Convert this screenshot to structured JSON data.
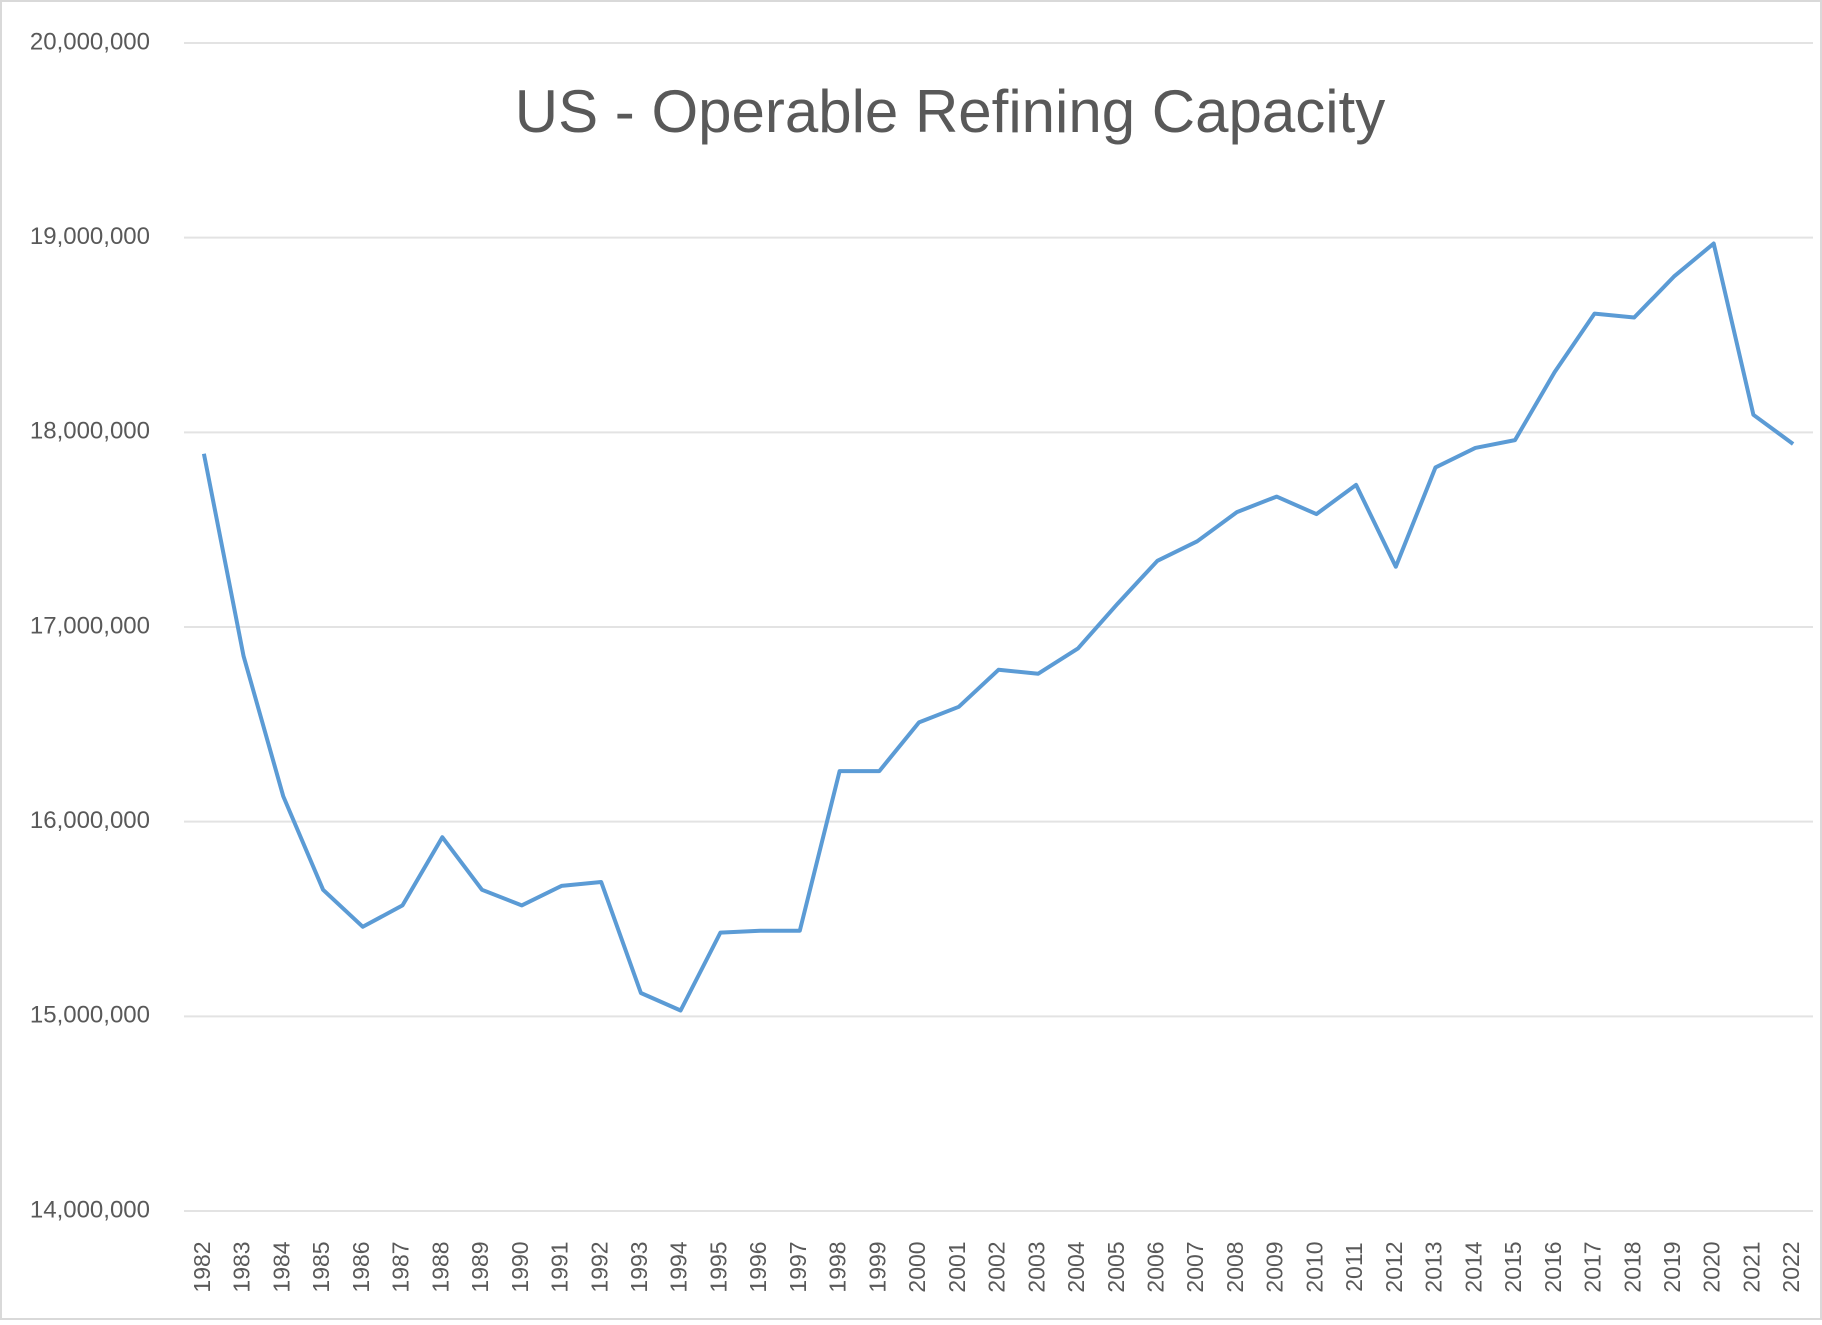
{
  "chart_data": {
    "type": "line",
    "title": "US - Operable Refining Capacity",
    "categories": [
      "1982",
      "1983",
      "1984",
      "1985",
      "1986",
      "1987",
      "1988",
      "1989",
      "1990",
      "1991",
      "1992",
      "1993",
      "1994",
      "1995",
      "1996",
      "1997",
      "1998",
      "1999",
      "2000",
      "2001",
      "2002",
      "2003",
      "2004",
      "2005",
      "2006",
      "2007",
      "2008",
      "2009",
      "2010",
      "2011",
      "2012",
      "2013",
      "2014",
      "2015",
      "2016",
      "2017",
      "2018",
      "2019",
      "2020",
      "2021",
      "2022"
    ],
    "series": [
      {
        "name": "Operable Refining Capacity",
        "color": "#5b9bd5",
        "values": [
          17890000,
          16850000,
          16130000,
          15650000,
          15460000,
          15570000,
          15920000,
          15650000,
          15570000,
          15670000,
          15690000,
          15120000,
          15030000,
          15430000,
          15440000,
          15440000,
          16260000,
          16260000,
          16510000,
          16590000,
          16780000,
          16760000,
          16890000,
          17120000,
          17340000,
          17440000,
          17590000,
          17670000,
          17580000,
          17730000,
          17310000,
          17820000,
          17920000,
          17960000,
          18310000,
          18610000,
          18590000,
          18800000,
          18970000,
          18090000,
          17940000
        ]
      }
    ],
    "ylim": [
      14000000,
      20000000
    ],
    "yticks": [
      {
        "value": 14000000,
        "label": "14,000,000"
      },
      {
        "value": 15000000,
        "label": "15,000,000"
      },
      {
        "value": 16000000,
        "label": "16,000,000"
      },
      {
        "value": 17000000,
        "label": "17,000,000"
      },
      {
        "value": 18000000,
        "label": "18,000,000"
      },
      {
        "value": 19000000,
        "label": "19,000,000"
      },
      {
        "value": 20000000,
        "label": "20,000,000"
      }
    ],
    "grid": true
  }
}
